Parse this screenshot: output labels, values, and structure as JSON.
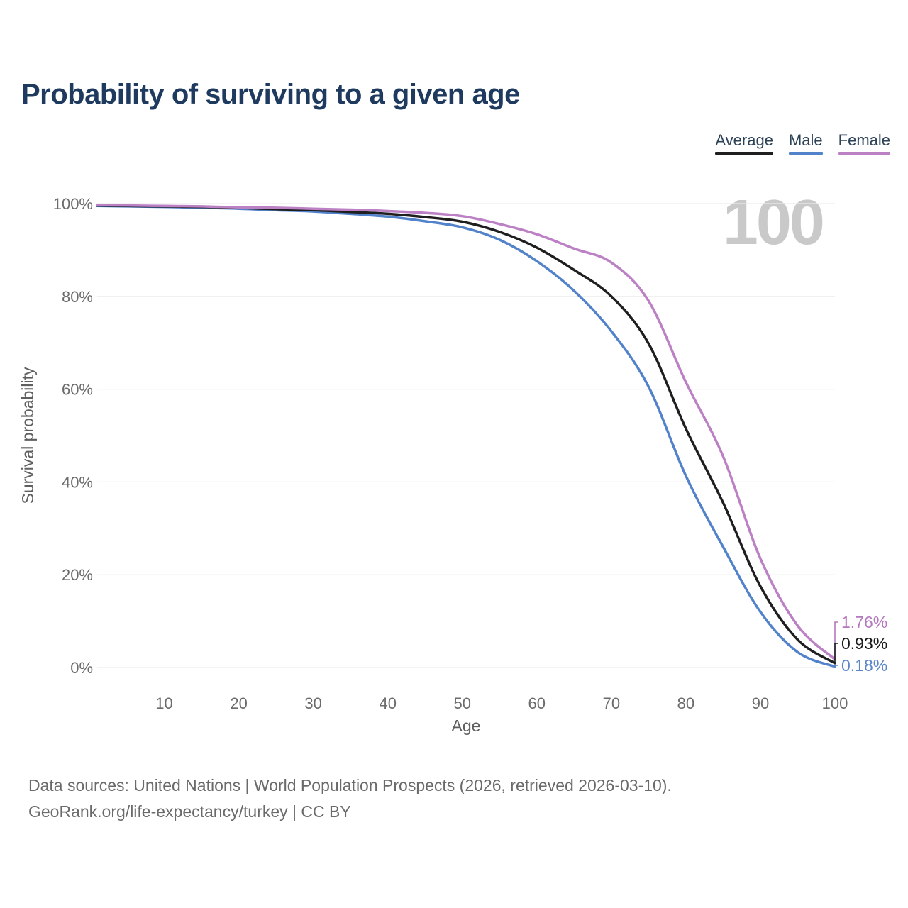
{
  "header": {
    "title": "Probability of surviving to a given age"
  },
  "watermark": {
    "text": "100"
  },
  "legend": {
    "items": [
      {
        "label": "Average",
        "color": "#1f1f1f"
      },
      {
        "label": "Male",
        "color": "#5282ca"
      },
      {
        "label": "Female",
        "color": "#bc80c4"
      }
    ]
  },
  "chart_data": {
    "type": "line",
    "title": "Probability of surviving to a given age",
    "xlabel": "Age",
    "ylabel": "Survival probability",
    "x": [
      1,
      5,
      10,
      15,
      20,
      25,
      30,
      35,
      40,
      45,
      50,
      55,
      60,
      65,
      70,
      75,
      80,
      85,
      90,
      95,
      100
    ],
    "series": [
      {
        "name": "Average",
        "color": "#1f1f1f",
        "end_label": "0.93%",
        "end_label_color": "#1a1a1a",
        "values": [
          99.6,
          99.5,
          99.4,
          99.3,
          99.1,
          98.8,
          98.6,
          98.2,
          97.8,
          97.1,
          96.1,
          93.9,
          90.5,
          85.7,
          80.0,
          69.8,
          51.5,
          35.5,
          17.5,
          6.0,
          0.93
        ]
      },
      {
        "name": "Male",
        "color": "#5282ca",
        "end_label": "0.18%",
        "end_label_color": "#5b87ca",
        "values": [
          99.5,
          99.4,
          99.3,
          99.1,
          98.9,
          98.6,
          98.3,
          97.8,
          97.2,
          96.2,
          94.9,
          92.2,
          87.6,
          81.2,
          72.5,
          60.5,
          41.3,
          26.0,
          12.0,
          3.3,
          0.18
        ]
      },
      {
        "name": "Female",
        "color": "#bc80c4",
        "end_label": "1.76%",
        "end_label_color": "#b577bf",
        "values": [
          99.7,
          99.6,
          99.5,
          99.4,
          99.2,
          99.1,
          98.9,
          98.7,
          98.4,
          98.0,
          97.3,
          95.6,
          93.4,
          90.3,
          87.3,
          79.0,
          61.5,
          45.5,
          23.5,
          9.0,
          1.76
        ]
      }
    ],
    "xlim": [
      1,
      100
    ],
    "ylim": [
      0,
      100
    ],
    "x_ticks": [
      10,
      20,
      30,
      40,
      50,
      60,
      70,
      80,
      90,
      100
    ],
    "y_ticks": [
      0,
      20,
      40,
      60,
      80,
      100
    ],
    "y_tick_suffix": "%",
    "grid": "horizontal",
    "legend_position": "top-right",
    "grid_color": "#ececec",
    "tick_text_color": "#6b6b6b",
    "axis_title_color": "#5f5f5f"
  },
  "footer": {
    "line1": "Data sources: United Nations | World Population Prospects (2026, retrieved 2026-03-10).",
    "line2": "GeoRank.org/life-expectancy/turkey | CC BY"
  }
}
